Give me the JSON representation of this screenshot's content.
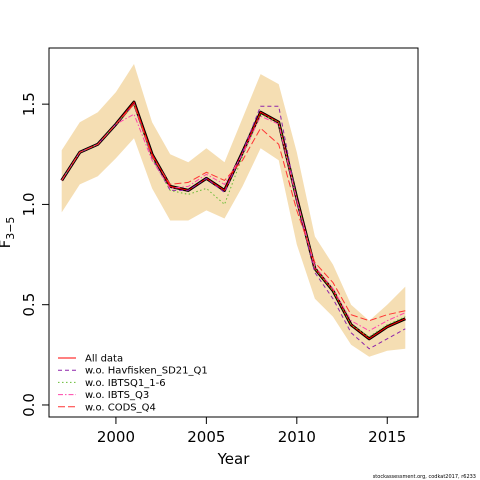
{
  "chart_data": {
    "type": "line",
    "xlabel": "Year",
    "ylabel": "F",
    "ylabel_subscript": "3−5",
    "xlim": [
      1996.3,
      2016.7
    ],
    "ylim": [
      -0.06,
      1.78
    ],
    "xticks": [
      2000,
      2005,
      2010,
      2015
    ],
    "xtick_labels": [
      "2000",
      "2005",
      "2010",
      "2015"
    ],
    "yticks": [
      0.0,
      0.5,
      1.0,
      1.5
    ],
    "ytick_labels": [
      "0.0",
      "0.5",
      "1.0",
      "1.5"
    ],
    "x": [
      1997,
      1998,
      1999,
      2000,
      2001,
      2002,
      2003,
      2004,
      2005,
      2006,
      2007,
      2008,
      2009,
      2010,
      2011,
      2012,
      2013,
      2014,
      2015,
      2016
    ],
    "band": {
      "color": "#f5deb3",
      "lower": [
        0.96,
        1.1,
        1.14,
        1.23,
        1.33,
        1.08,
        0.92,
        0.92,
        0.97,
        0.93,
        1.09,
        1.28,
        1.22,
        0.8,
        0.53,
        0.44,
        0.3,
        0.24,
        0.27,
        0.28
      ],
      "upper": [
        1.27,
        1.41,
        1.46,
        1.56,
        1.7,
        1.41,
        1.25,
        1.21,
        1.28,
        1.21,
        1.43,
        1.65,
        1.6,
        1.26,
        0.84,
        0.7,
        0.5,
        0.42,
        0.5,
        0.59
      ]
    },
    "main_line": {
      "color": "#000000",
      "values": [
        1.12,
        1.26,
        1.3,
        1.4,
        1.51,
        1.25,
        1.09,
        1.07,
        1.13,
        1.07,
        1.26,
        1.46,
        1.41,
        1.03,
        0.68,
        0.57,
        0.4,
        0.33,
        0.39,
        0.43
      ]
    },
    "series": [
      {
        "name": "All data",
        "color": "#ff0000",
        "dash": "",
        "values": [
          1.12,
          1.26,
          1.3,
          1.4,
          1.51,
          1.25,
          1.09,
          1.07,
          1.13,
          1.07,
          1.26,
          1.46,
          1.41,
          1.03,
          0.68,
          0.57,
          0.4,
          0.33,
          0.39,
          0.43
        ]
      },
      {
        "name": "w.o. Havfisken_SD21_Q1",
        "color": "#8e24aa",
        "dash": "4,3",
        "values": [
          1.12,
          1.26,
          1.3,
          1.4,
          1.5,
          1.23,
          1.07,
          1.07,
          1.13,
          1.06,
          1.26,
          1.49,
          1.49,
          1.02,
          0.66,
          0.53,
          0.36,
          0.28,
          0.33,
          0.38
        ]
      },
      {
        "name": "w.o. IBTSQ1_1-6",
        "color": "#66bb33",
        "dash": "1.5,2.5",
        "values": [
          1.12,
          1.26,
          1.3,
          1.4,
          1.5,
          1.23,
          1.07,
          1.05,
          1.08,
          1.0,
          1.24,
          1.45,
          1.41,
          1.03,
          0.68,
          0.57,
          0.4,
          0.34,
          0.4,
          0.44
        ]
      },
      {
        "name": "w.o. IBTS_Q3",
        "color": "#ff44aa",
        "dash": "5,2,1.5,2",
        "values": [
          1.12,
          1.26,
          1.3,
          1.4,
          1.45,
          1.22,
          1.08,
          1.09,
          1.15,
          1.1,
          1.25,
          1.44,
          1.4,
          1.02,
          0.69,
          0.58,
          0.42,
          0.37,
          0.42,
          0.46
        ]
      },
      {
        "name": "w.o. CODS_Q4",
        "color": "#ff3333",
        "dash": "7,3",
        "values": [
          1.12,
          1.26,
          1.3,
          1.4,
          1.5,
          1.24,
          1.1,
          1.11,
          1.16,
          1.12,
          1.22,
          1.38,
          1.3,
          0.97,
          0.71,
          0.61,
          0.45,
          0.42,
          0.45,
          0.47
        ]
      }
    ],
    "legend_position": "bottom-left",
    "grid": false
  },
  "footer": {
    "credit": "stockassessment.org, codkat2017, r6233"
  }
}
